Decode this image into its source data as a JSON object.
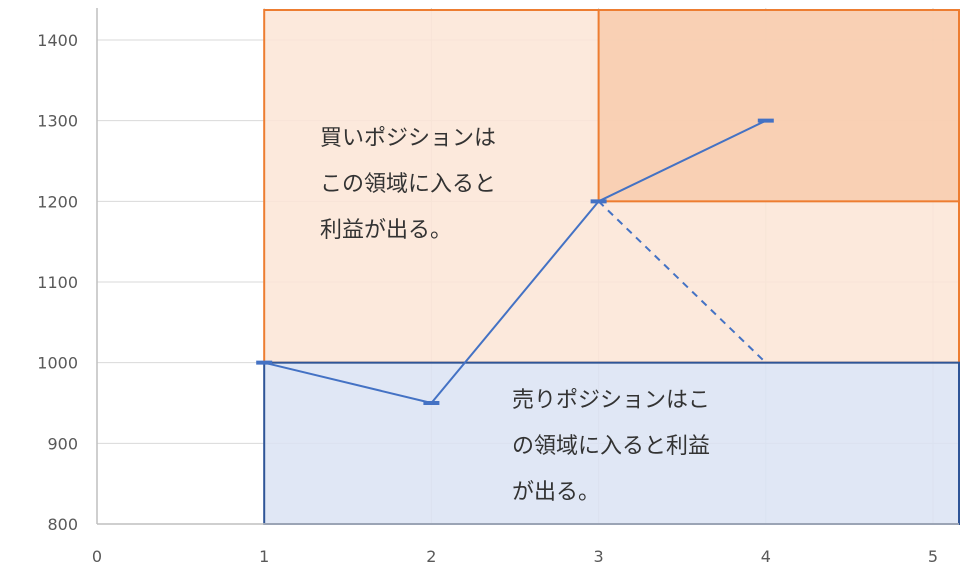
{
  "chart_data": {
    "type": "line",
    "xlim": [
      0,
      5
    ],
    "ylim": [
      800,
      1400
    ],
    "x_ticks": [
      "0",
      "1",
      "2",
      "3",
      "4",
      "5"
    ],
    "y_ticks": [
      "800",
      "900",
      "1000",
      "1100",
      "1200",
      "1300",
      "1400"
    ],
    "grid": true,
    "series": [
      {
        "style": "solid",
        "color": "#4472C4",
        "x": [
          1,
          2,
          3,
          4
        ],
        "y": [
          1000,
          950,
          1200,
          1300
        ]
      },
      {
        "style": "dashed",
        "color": "#4472C4",
        "x": [
          3,
          4
        ],
        "y": [
          1200,
          1000
        ]
      }
    ],
    "regions": [
      {
        "id": "buy-zone",
        "x": [
          1,
          5.17
        ],
        "y": [
          1000,
          1465
        ],
        "fill": "#FBE5D6",
        "stroke": "#ED7D31"
      },
      {
        "id": "buy-zone-upper",
        "x": [
          3,
          5.17
        ],
        "y": [
          1200,
          1465
        ],
        "fill": "#F8CBAD",
        "stroke": "#ED7D31"
      },
      {
        "id": "sell-zone",
        "x": [
          1,
          5.17
        ],
        "y": [
          800,
          1000
        ],
        "fill": "#DAE3F3",
        "stroke": "#2F5597"
      }
    ],
    "annotations": [
      {
        "id": "buy",
        "lines": [
          "買いポジションは",
          "この領域に入ると",
          "利益が出る。"
        ]
      },
      {
        "id": "sell",
        "lines": [
          "売りポジションはこ",
          "の領域に入ると利益",
          "が出る。"
        ]
      }
    ]
  }
}
